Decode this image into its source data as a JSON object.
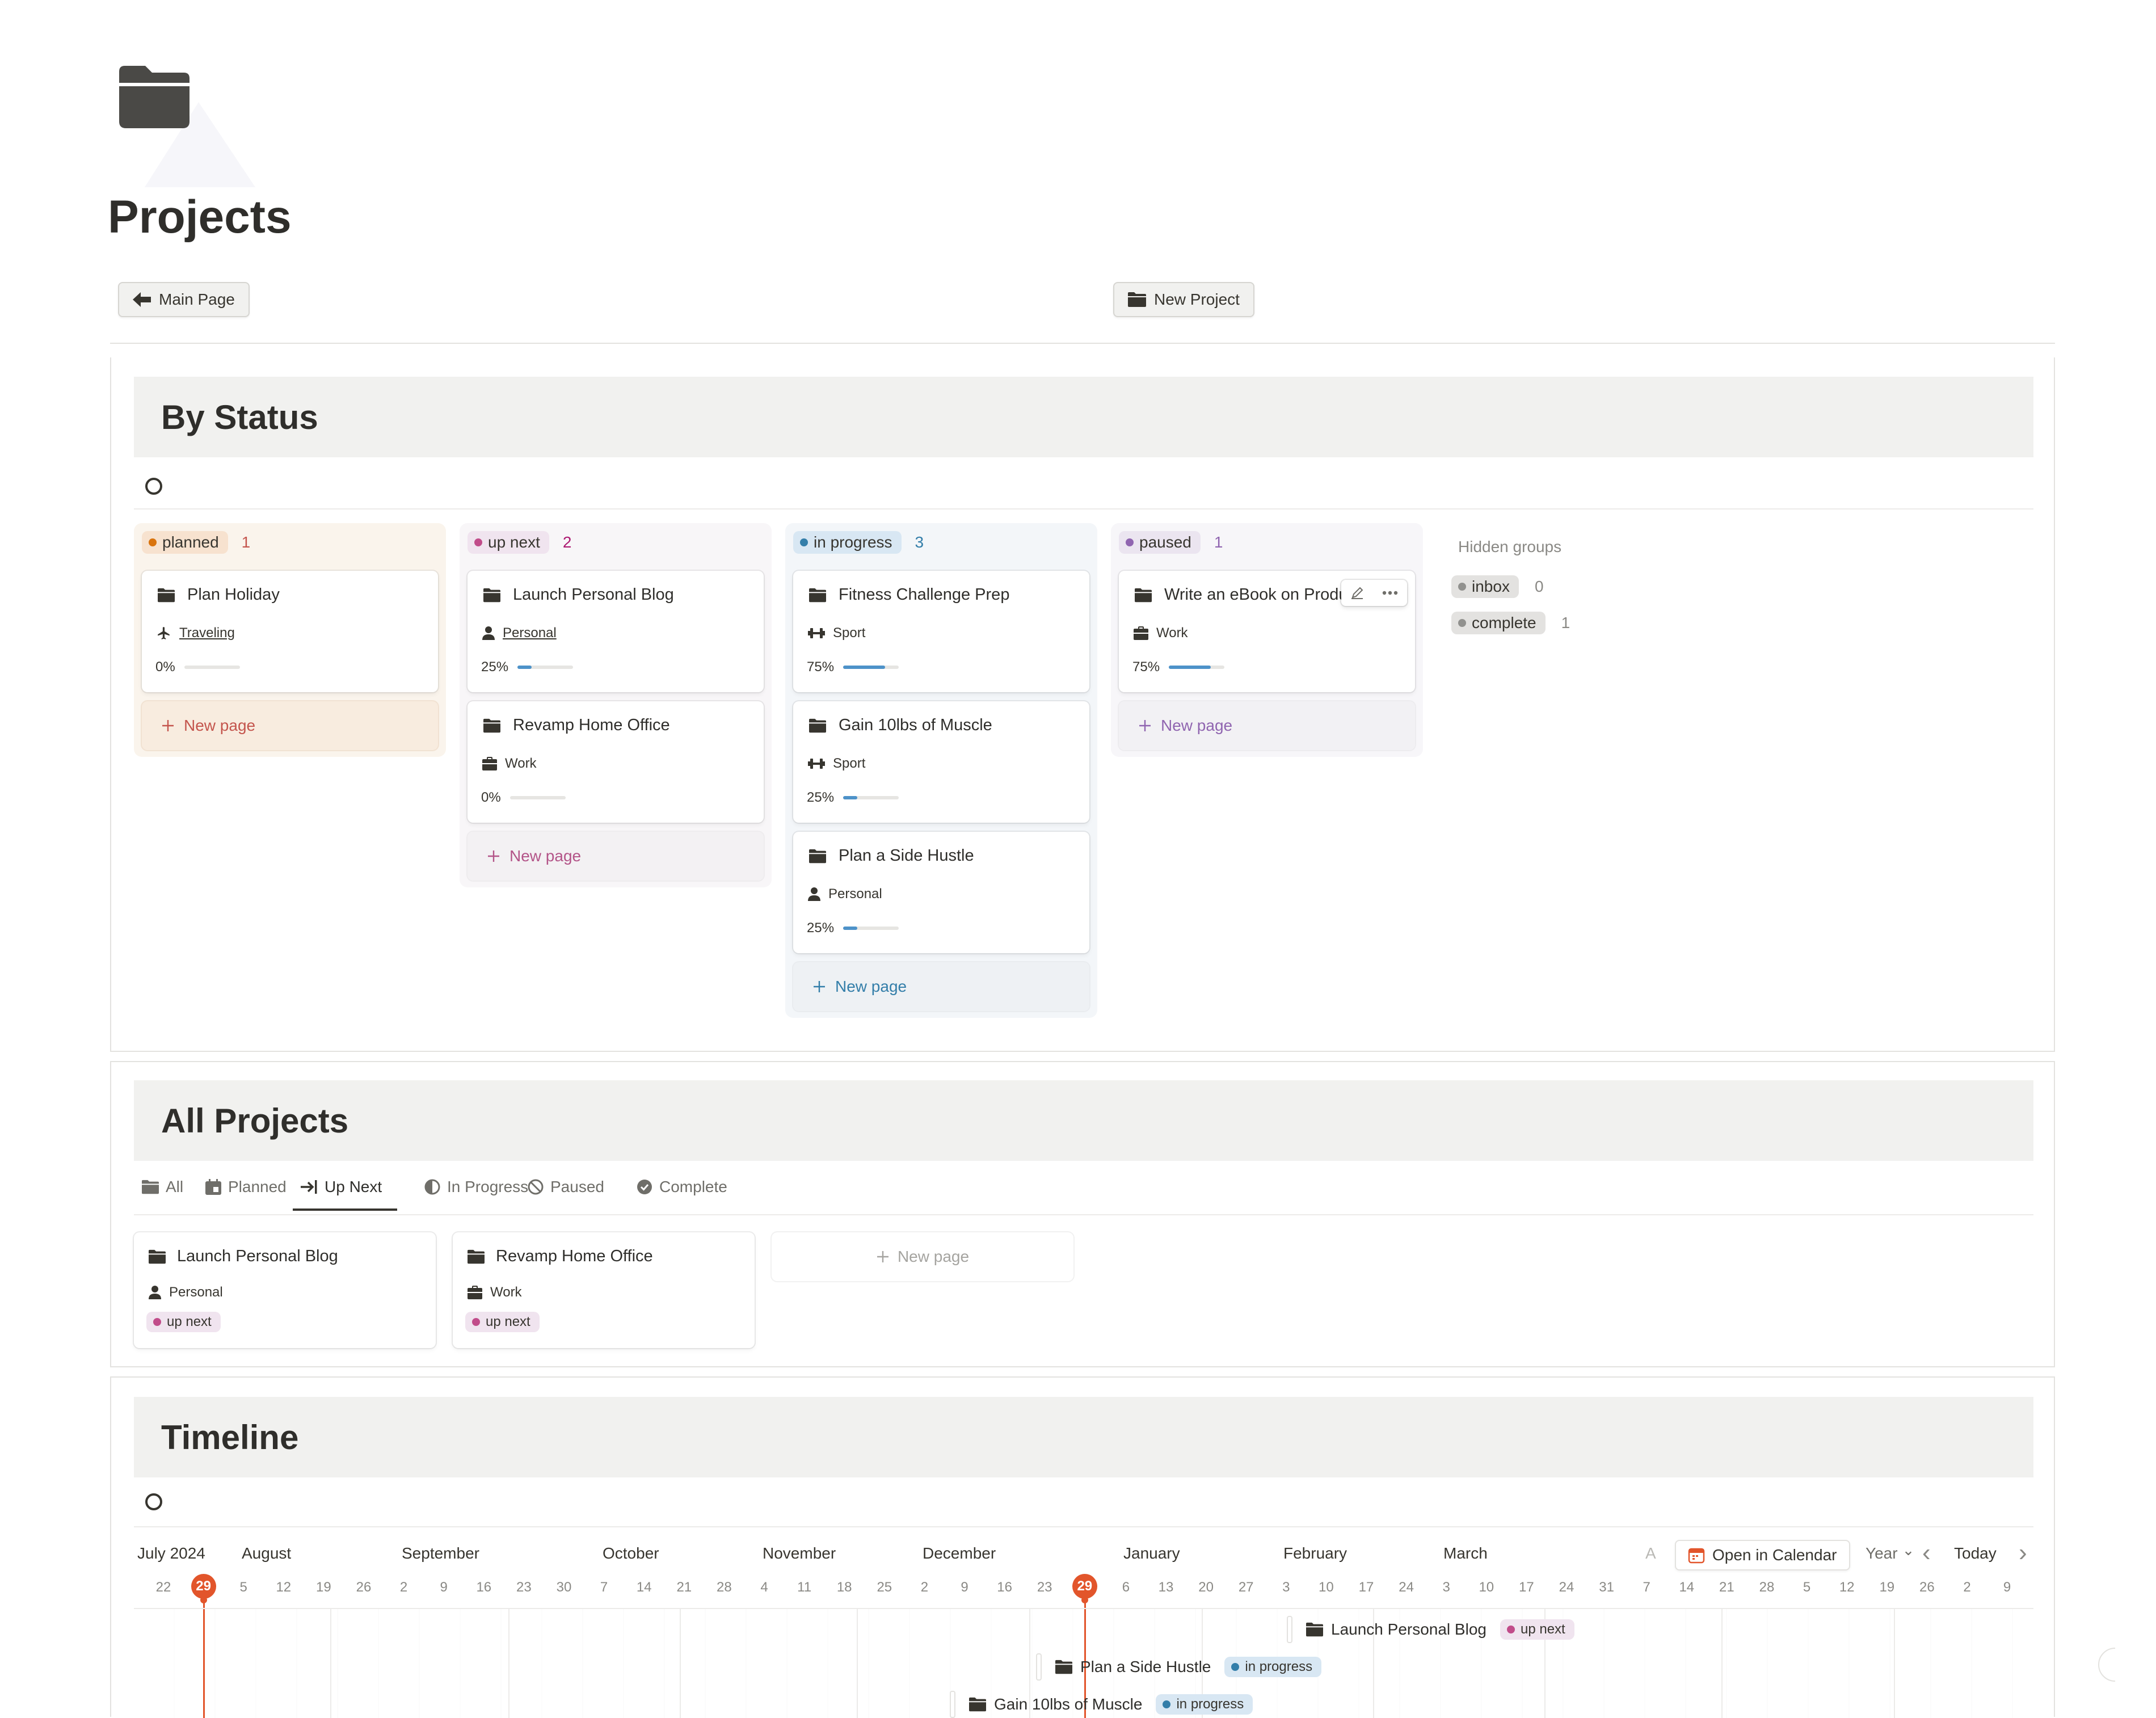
{
  "page": {
    "title": "Projects"
  },
  "buttons": {
    "main_page": "Main Page",
    "new_project": "New Project"
  },
  "by_status": {
    "heading": "By Status",
    "columns": [
      {
        "name": "planned",
        "count": "1",
        "dot": "#d9730d",
        "bg": "#faf4ec",
        "pill_bg": "#f7e2cf",
        "count_color": "#c4554d",
        "new_color": "#c4554d",
        "cards": [
          {
            "title": "Plan Holiday",
            "tag": "Traveling",
            "tag_icon": "airplane-icon",
            "progress_label": "0%",
            "progress": 0
          }
        ]
      },
      {
        "name": "up next",
        "count": "2",
        "dot": "#c14c8a",
        "bg": "#f8f6f8",
        "pill_bg": "#f0e4ef",
        "count_color": "#ad1a72",
        "new_color": "#b35488",
        "cards": [
          {
            "title": "Launch Personal Blog",
            "tag": "Personal",
            "tag_icon": "person-icon",
            "progress_label": "25%",
            "progress": 0.25
          },
          {
            "title": "Revamp Home Office",
            "tag": "Work",
            "tag_icon": "briefcase-icon",
            "progress_label": "0%",
            "progress": 0
          }
        ]
      },
      {
        "name": "in progress",
        "count": "3",
        "dot": "#337ea9",
        "bg": "#f3f6f9",
        "pill_bg": "#d8e7f3",
        "count_color": "#337ea9",
        "new_color": "#337ea9",
        "cards": [
          {
            "title": "Fitness Challenge Prep",
            "tag": "Sport",
            "tag_icon": "dumbbell-icon",
            "progress_label": "75%",
            "progress": 0.75
          },
          {
            "title": "Gain 10lbs of Muscle",
            "tag": "Sport",
            "tag_icon": "dumbbell-icon",
            "progress_label": "25%",
            "progress": 0.25
          },
          {
            "title": "Plan a Side Hustle",
            "tag": "Personal",
            "tag_icon": "person-icon",
            "progress_label": "25%",
            "progress": 0.25
          }
        ]
      },
      {
        "name": "paused",
        "count": "1",
        "dot": "#9065b0",
        "bg": "#f7f6f9",
        "pill_bg": "#ebe5f0",
        "count_color": "#9065b0",
        "new_color": "#9065b0",
        "cards": [
          {
            "title": "Write an eBook on Produ",
            "tag": "Work",
            "tag_icon": "briefcase-icon",
            "progress_label": "75%",
            "progress": 0.75
          }
        ]
      }
    ],
    "new_page": "New page",
    "hidden_groups": {
      "title": "Hidden groups",
      "items": [
        {
          "name": "inbox",
          "count": "0"
        },
        {
          "name": "complete",
          "count": "1"
        }
      ]
    }
  },
  "all_projects": {
    "heading": "All Projects",
    "tabs": [
      {
        "label": "All",
        "icon": "folder-icon"
      },
      {
        "label": "Planned",
        "icon": "calendar-icon"
      },
      {
        "label": "Up Next",
        "icon": "arrow-right-bar-icon",
        "active": true
      },
      {
        "label": "In Progress",
        "icon": "half-circle-icon"
      },
      {
        "label": "Paused",
        "icon": "prohibited-icon"
      },
      {
        "label": "Complete",
        "icon": "check-circle-icon"
      }
    ],
    "cards": [
      {
        "title": "Launch Personal Blog",
        "tag": "Personal",
        "status": "up next"
      },
      {
        "title": "Revamp Home Office",
        "tag": "Work",
        "status": "up next"
      }
    ],
    "new_page": "New page"
  },
  "timeline": {
    "heading": "Timeline",
    "months": [
      "July 2024",
      "August",
      "September",
      "October",
      "November",
      "December",
      "January",
      "February",
      "March",
      "A"
    ],
    "days": [
      "22",
      "29",
      "5",
      "12",
      "19",
      "26",
      "2",
      "9",
      "16",
      "23",
      "30",
      "7",
      "14",
      "21",
      "28",
      "4",
      "11",
      "18",
      "25",
      "2",
      "9",
      "16",
      "23",
      "29",
      "6",
      "13",
      "20",
      "27",
      "3",
      "10",
      "17",
      "24",
      "3",
      "10",
      "17",
      "24",
      "31",
      "7",
      "14",
      "21",
      "28",
      "5",
      "12",
      "19",
      "26",
      "2",
      "9"
    ],
    "today": "29",
    "controls": {
      "open_calendar": "Open in Calendar",
      "scale": "Year",
      "today": "Today"
    },
    "items": [
      {
        "title": "Launch Personal Blog",
        "status": "up next"
      },
      {
        "title": "Plan a Side Hustle",
        "status": "in progress"
      },
      {
        "title": "Gain 10lbs of Muscle",
        "status": "in progress"
      }
    ]
  },
  "colors": {
    "accent_today": "#e2552b",
    "progress": "#4d92c9"
  }
}
